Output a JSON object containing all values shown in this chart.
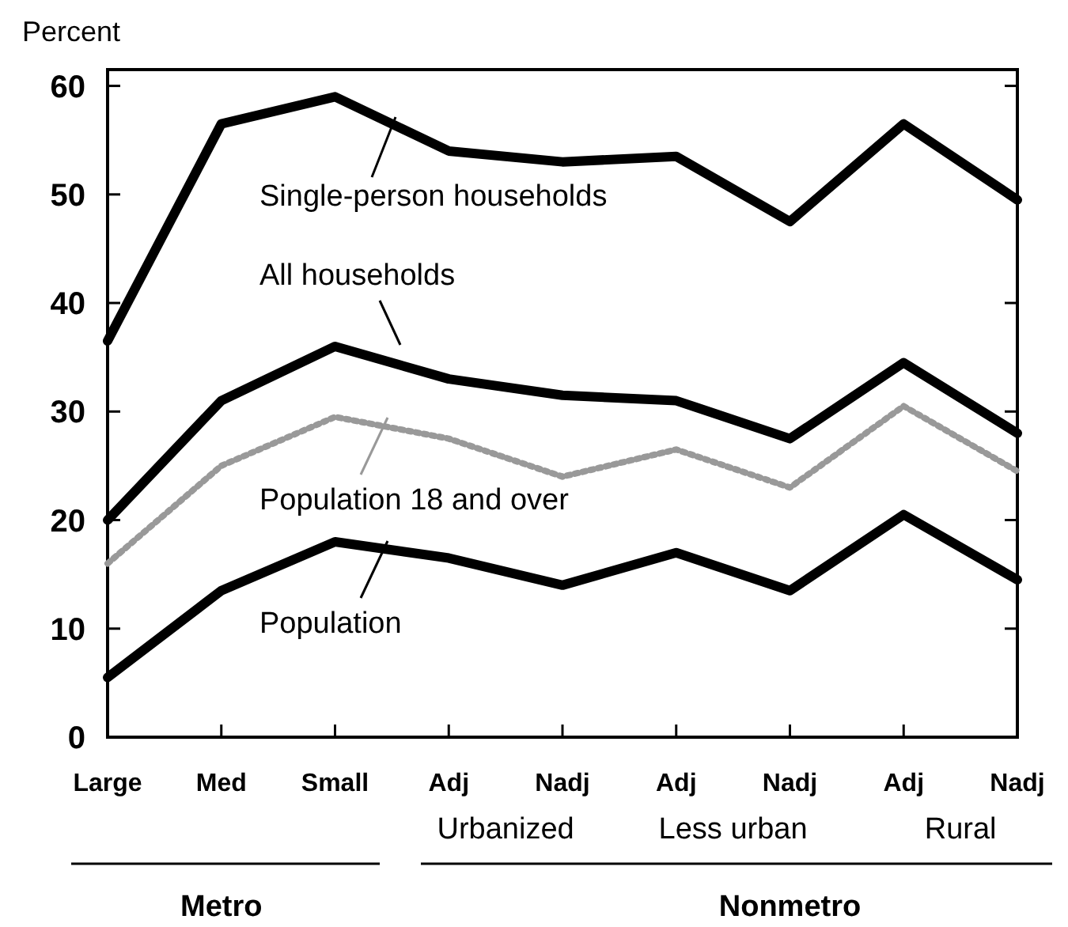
{
  "chart_data": {
    "type": "line",
    "ylabel": "Percent",
    "categories": [
      "Large",
      "Med",
      "Small",
      "Adj",
      "Nadj",
      "Adj",
      "Nadj",
      "Adj",
      "Nadj"
    ],
    "ylim": [
      0,
      61.5
    ],
    "yticks": [
      0,
      10,
      20,
      30,
      40,
      50,
      60
    ],
    "grid": false,
    "legend": "left",
    "series": [
      {
        "name": "Single-person households",
        "color": "#000000",
        "values": [
          36.5,
          56.5,
          59,
          54,
          53,
          53.5,
          47.5,
          56.5,
          49.5
        ]
      },
      {
        "name": "All households",
        "color": "#000000",
        "values": [
          20,
          31,
          36,
          33,
          31.5,
          31,
          27.5,
          34.5,
          28
        ]
      },
      {
        "name": "Population 18 and over",
        "color": "#999999",
        "line_style": "dotted",
        "values": [
          16,
          25,
          29.5,
          27.5,
          24,
          26.5,
          23,
          30.5,
          24.5
        ]
      },
      {
        "name": "Population",
        "color": "#000000",
        "values": [
          5.5,
          13.5,
          18,
          16.5,
          14,
          17,
          13.5,
          20.5,
          14.5
        ]
      }
    ],
    "annotations": [
      "Urbanized",
      "Less urban",
      "Rural",
      "Metro",
      "Nonmetro"
    ]
  }
}
